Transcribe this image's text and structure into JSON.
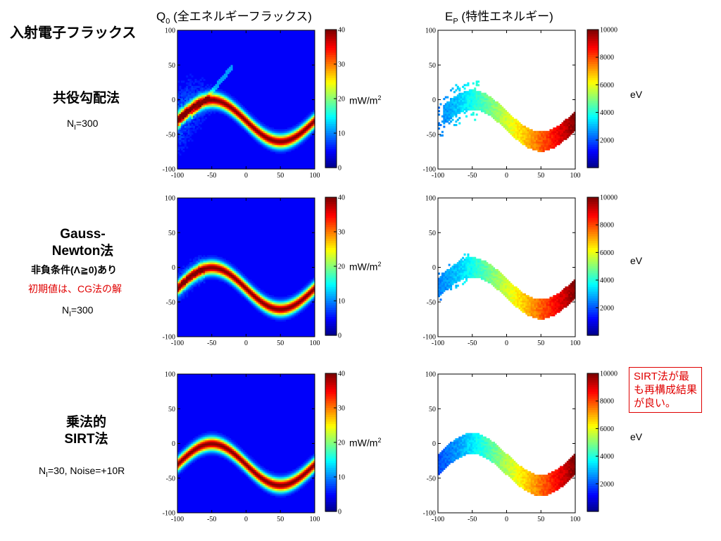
{
  "header": {
    "main_title": "入射電子フラックス",
    "col1_q": "Q",
    "col1_sub": "0",
    "col1_rest": "(全エネルギーフラックス)",
    "col2_e": "E",
    "col2_sub": "P",
    "col2_rest": "(特性エネルギー)"
  },
  "rows": [
    {
      "method_lines": [
        "共役勾配法"
      ],
      "n_label": "N",
      "n_sub": "I",
      "n_rest": "=300"
    },
    {
      "method_lines": [
        "Gauss-",
        "Newton法"
      ],
      "extra": "非負条件(Λ≧0)あり",
      "extra_red": "初期値は、CG法の解",
      "n_label": "N",
      "n_sub": "I",
      "n_rest": "=300"
    },
    {
      "method_lines": [
        "乗法的",
        "SIRT法"
      ],
      "n_label": "N",
      "n_sub": "I",
      "n_rest": "=30, Noise=+10R"
    }
  ],
  "units": {
    "flux": "mW/m",
    "flux_sup": "2",
    "energy": "eV"
  },
  "note": [
    "SIRT法が最",
    "も再構成結果",
    "が良い。"
  ],
  "chart_data": [
    {
      "type": "heatmap",
      "quantity": "Q0",
      "method": "CG",
      "xlim": [
        -100,
        100
      ],
      "ylim": [
        -100,
        100
      ],
      "x_ticks": [
        -100,
        -50,
        0,
        50,
        100
      ],
      "y_ticks": [
        100,
        50,
        0,
        -50,
        -100
      ],
      "colorbar": {
        "min": 0,
        "max": 40,
        "ticks": [
          40,
          30,
          20,
          10,
          0
        ]
      },
      "curve": {
        "form": "y = -30 + 30*cos((x+50)*pi/100)",
        "peak": 40
      }
    },
    {
      "type": "heatmap",
      "quantity": "EP",
      "method": "CG",
      "xlim": [
        -100,
        100
      ],
      "ylim": [
        -100,
        100
      ],
      "x_ticks": [
        -100,
        -50,
        0,
        50,
        100
      ],
      "y_ticks": [
        100,
        50,
        0,
        -50,
        -100
      ],
      "colorbar": {
        "min": 0,
        "max": 10000,
        "ticks": [
          10000,
          8000,
          6000,
          4000,
          2000
        ]
      },
      "energy_range": [
        2500,
        10000
      ]
    },
    {
      "type": "heatmap",
      "quantity": "Q0",
      "method": "Gauss-Newton",
      "xlim": [
        -100,
        100
      ],
      "ylim": [
        -100,
        100
      ],
      "x_ticks": [
        -100,
        -50,
        0,
        50,
        100
      ],
      "y_ticks": [
        100,
        50,
        0,
        -50,
        -100
      ],
      "colorbar": {
        "min": 0,
        "max": 40,
        "ticks": [
          40,
          30,
          20,
          10,
          0
        ]
      },
      "curve": {
        "form": "y = -30 + 30*cos((x+50)*pi/100)",
        "peak": 40
      }
    },
    {
      "type": "heatmap",
      "quantity": "EP",
      "method": "Gauss-Newton",
      "xlim": [
        -100,
        100
      ],
      "ylim": [
        -100,
        100
      ],
      "x_ticks": [
        -100,
        -50,
        0,
        50,
        100
      ],
      "y_ticks": [
        100,
        50,
        0,
        -50,
        -100
      ],
      "colorbar": {
        "min": 0,
        "max": 10000,
        "ticks": [
          10000,
          8000,
          6000,
          4000,
          2000
        ]
      },
      "energy_range": [
        2500,
        10000
      ]
    },
    {
      "type": "heatmap",
      "quantity": "Q0",
      "method": "SIRT",
      "xlim": [
        -100,
        100
      ],
      "ylim": [
        -100,
        100
      ],
      "x_ticks": [
        -100,
        -50,
        0,
        50,
        100
      ],
      "y_ticks": [
        100,
        50,
        0,
        -50,
        -100
      ],
      "colorbar": {
        "min": 0,
        "max": 40,
        "ticks": [
          40,
          30,
          20,
          10,
          0
        ]
      },
      "curve": {
        "form": "y = -30 + 30*cos((x+50)*pi/100)",
        "peak": 40
      }
    },
    {
      "type": "heatmap",
      "quantity": "EP",
      "method": "SIRT",
      "xlim": [
        -100,
        100
      ],
      "ylim": [
        -100,
        100
      ],
      "x_ticks": [
        -100,
        -50,
        0,
        50,
        100
      ],
      "y_ticks": [
        100,
        50,
        0,
        -50,
        -100
      ],
      "colorbar": {
        "min": 0,
        "max": 10000,
        "ticks": [
          10000,
          8000,
          6000,
          4000,
          2000
        ]
      },
      "energy_range": [
        2000,
        10000
      ]
    }
  ]
}
